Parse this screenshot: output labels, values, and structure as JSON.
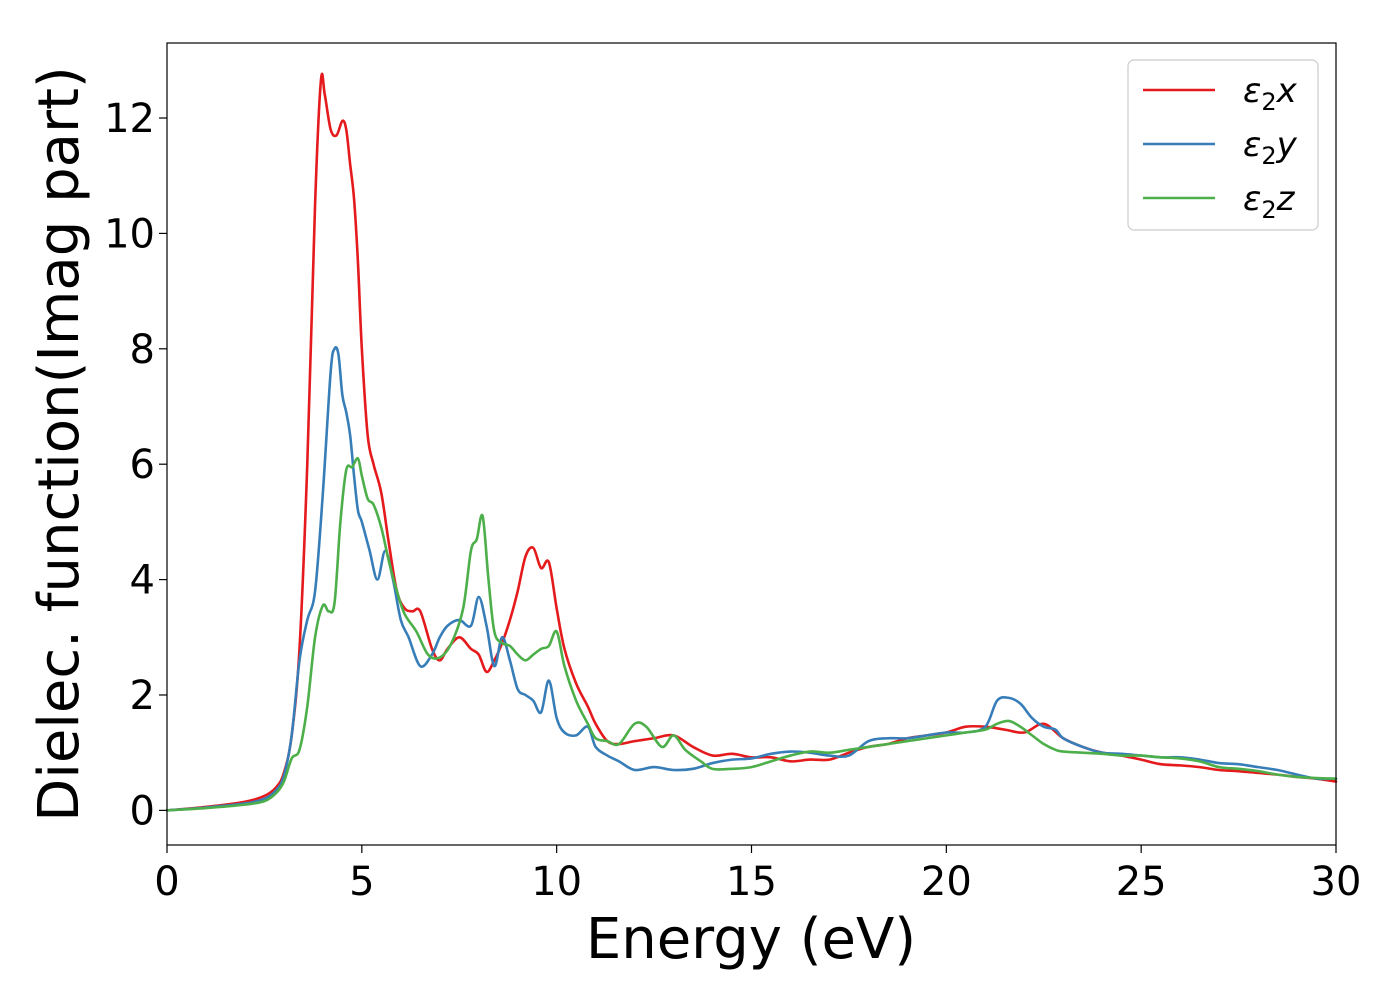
{
  "chart_data": {
    "type": "line",
    "xlabel": "Energy (eV)",
    "ylabel": "Dielec. function(Imag part)",
    "xlim": [
      0,
      30
    ],
    "ylim": [
      -0.6,
      13.3
    ],
    "xticks": [
      0,
      5,
      10,
      15,
      20,
      25,
      30
    ],
    "yticks": [
      0,
      2,
      4,
      6,
      8,
      10,
      12
    ],
    "grid": false,
    "legend_position": "top-right",
    "series": [
      {
        "name": "ε₂x",
        "legend_symbol": "ε",
        "legend_sub": "2",
        "legend_var": "x",
        "color": "#e41a1c",
        "x": [
          0,
          1,
          2,
          2.5,
          2.8,
          3.0,
          3.2,
          3.4,
          3.6,
          3.8,
          3.95,
          4.05,
          4.2,
          4.35,
          4.5,
          4.6,
          4.7,
          4.8,
          4.9,
          5.0,
          5.15,
          5.3,
          5.5,
          5.7,
          5.9,
          6.1,
          6.3,
          6.5,
          6.8,
          7.0,
          7.2,
          7.5,
          7.8,
          8.0,
          8.2,
          8.4,
          8.6,
          8.8,
          9.0,
          9.2,
          9.4,
          9.6,
          9.8,
          10.0,
          10.2,
          10.5,
          10.8,
          11.0,
          11.3,
          11.6,
          12.0,
          12.5,
          13.0,
          13.5,
          14.0,
          14.5,
          15.0,
          15.5,
          16.0,
          16.5,
          17.0,
          17.5,
          18.0,
          18.5,
          19.0,
          19.5,
          20.0,
          20.5,
          21.0,
          21.5,
          22.0,
          22.5,
          23.0,
          23.5,
          24.0,
          24.5,
          25.0,
          25.5,
          26.0,
          26.5,
          27.0,
          27.5,
          28.0,
          28.5,
          29.0,
          29.5,
          30.0
        ],
        "y": [
          0.0,
          0.06,
          0.15,
          0.25,
          0.4,
          0.65,
          1.3,
          2.8,
          6.0,
          10.5,
          12.65,
          12.4,
          11.8,
          11.7,
          11.95,
          11.8,
          11.2,
          10.6,
          9.5,
          8.0,
          6.5,
          6.0,
          5.5,
          4.6,
          3.8,
          3.5,
          3.45,
          3.45,
          2.8,
          2.6,
          2.8,
          3.0,
          2.8,
          2.7,
          2.4,
          2.6,
          2.9,
          3.3,
          3.8,
          4.4,
          4.55,
          4.2,
          4.3,
          3.5,
          2.8,
          2.2,
          1.8,
          1.5,
          1.2,
          1.15,
          1.2,
          1.25,
          1.3,
          1.1,
          0.95,
          0.98,
          0.92,
          0.92,
          0.85,
          0.88,
          0.88,
          1.0,
          1.1,
          1.15,
          1.25,
          1.3,
          1.35,
          1.45,
          1.45,
          1.4,
          1.35,
          1.5,
          1.25,
          1.1,
          1.0,
          0.95,
          0.88,
          0.8,
          0.78,
          0.75,
          0.7,
          0.68,
          0.65,
          0.62,
          0.58,
          0.55,
          0.5
        ]
      },
      {
        "name": "ε₂y",
        "legend_symbol": "ε",
        "legend_sub": "2",
        "legend_var": "y",
        "color": "#377eb8",
        "x": [
          0,
          1,
          2,
          2.5,
          2.8,
          3.0,
          3.2,
          3.4,
          3.6,
          3.8,
          4.0,
          4.2,
          4.3,
          4.4,
          4.5,
          4.6,
          4.7,
          4.8,
          4.9,
          5.0,
          5.2,
          5.4,
          5.6,
          5.8,
          6.0,
          6.2,
          6.5,
          6.8,
          7.0,
          7.2,
          7.5,
          7.8,
          8.0,
          8.2,
          8.4,
          8.6,
          8.8,
          9.0,
          9.2,
          9.4,
          9.6,
          9.8,
          10.0,
          10.2,
          10.5,
          10.8,
          11.0,
          11.3,
          11.6,
          12.0,
          12.5,
          13.0,
          13.5,
          14.0,
          14.5,
          15.0,
          15.5,
          16.0,
          16.5,
          17.0,
          17.5,
          18.0,
          18.5,
          19.0,
          19.5,
          20.0,
          20.5,
          21.0,
          21.3,
          21.6,
          21.9,
          22.2,
          22.5,
          22.8,
          23.0,
          23.5,
          24.0,
          24.5,
          25.0,
          25.5,
          26.0,
          26.5,
          27.0,
          27.5,
          28.0,
          28.5,
          29.0,
          29.5,
          30.0
        ],
        "y": [
          0.0,
          0.05,
          0.12,
          0.2,
          0.35,
          0.6,
          1.3,
          2.6,
          3.3,
          3.8,
          5.5,
          7.6,
          8.0,
          7.9,
          7.2,
          6.9,
          6.5,
          5.8,
          5.2,
          5.0,
          4.5,
          4.0,
          4.5,
          4.0,
          3.3,
          3.0,
          2.5,
          2.7,
          3.0,
          3.2,
          3.3,
          3.2,
          3.7,
          3.2,
          2.5,
          3.0,
          2.6,
          2.1,
          2.0,
          1.9,
          1.7,
          2.25,
          1.6,
          1.35,
          1.3,
          1.45,
          1.1,
          0.95,
          0.85,
          0.7,
          0.75,
          0.7,
          0.72,
          0.82,
          0.88,
          0.9,
          0.98,
          1.02,
          1.0,
          0.95,
          0.95,
          1.2,
          1.25,
          1.25,
          1.3,
          1.35,
          1.35,
          1.45,
          1.9,
          1.95,
          1.85,
          1.6,
          1.45,
          1.4,
          1.25,
          1.1,
          1.0,
          0.98,
          0.95,
          0.92,
          0.92,
          0.88,
          0.82,
          0.8,
          0.75,
          0.7,
          0.62,
          0.55,
          0.55
        ]
      },
      {
        "name": "ε₂z",
        "legend_symbol": "ε",
        "legend_sub": "2",
        "legend_var": "z",
        "color": "#4daf4a",
        "x": [
          0,
          1,
          2,
          2.5,
          2.8,
          3.0,
          3.2,
          3.4,
          3.6,
          3.8,
          4.0,
          4.15,
          4.3,
          4.45,
          4.6,
          4.75,
          4.9,
          5.0,
          5.15,
          5.3,
          5.5,
          5.7,
          5.9,
          6.1,
          6.4,
          6.7,
          7.0,
          7.3,
          7.6,
          7.8,
          7.95,
          8.1,
          8.25,
          8.4,
          8.6,
          8.8,
          9.0,
          9.2,
          9.4,
          9.6,
          9.8,
          10.0,
          10.2,
          10.5,
          10.8,
          11.0,
          11.3,
          11.6,
          12.0,
          12.3,
          12.7,
          13.0,
          13.3,
          13.7,
          14.0,
          14.5,
          15.0,
          15.5,
          16.0,
          16.5,
          17.0,
          17.5,
          18.0,
          18.5,
          19.0,
          19.5,
          20.0,
          20.5,
          21.0,
          21.3,
          21.6,
          21.9,
          22.2,
          22.5,
          22.8,
          23.0,
          23.5,
          24.0,
          24.5,
          25.0,
          25.5,
          26.0,
          26.5,
          27.0,
          27.5,
          28.0,
          28.5,
          29.0,
          29.5,
          30.0
        ],
        "y": [
          0.0,
          0.04,
          0.1,
          0.16,
          0.3,
          0.5,
          0.9,
          1.05,
          1.8,
          3.0,
          3.55,
          3.45,
          3.6,
          5.0,
          5.9,
          5.95,
          6.1,
          5.8,
          5.4,
          5.3,
          4.9,
          4.3,
          3.8,
          3.4,
          3.1,
          2.7,
          2.65,
          2.9,
          3.5,
          4.5,
          4.7,
          5.1,
          4.0,
          3.1,
          2.9,
          2.85,
          2.7,
          2.6,
          2.7,
          2.8,
          2.85,
          3.1,
          2.5,
          1.9,
          1.5,
          1.25,
          1.2,
          1.15,
          1.5,
          1.45,
          1.1,
          1.3,
          1.05,
          0.85,
          0.72,
          0.72,
          0.75,
          0.85,
          0.95,
          1.02,
          1.0,
          1.05,
          1.1,
          1.15,
          1.2,
          1.25,
          1.3,
          1.35,
          1.4,
          1.5,
          1.55,
          1.45,
          1.3,
          1.15,
          1.05,
          1.02,
          1.0,
          0.98,
          0.95,
          0.95,
          0.92,
          0.9,
          0.85,
          0.75,
          0.72,
          0.68,
          0.62,
          0.58,
          0.56,
          0.55
        ]
      }
    ]
  }
}
